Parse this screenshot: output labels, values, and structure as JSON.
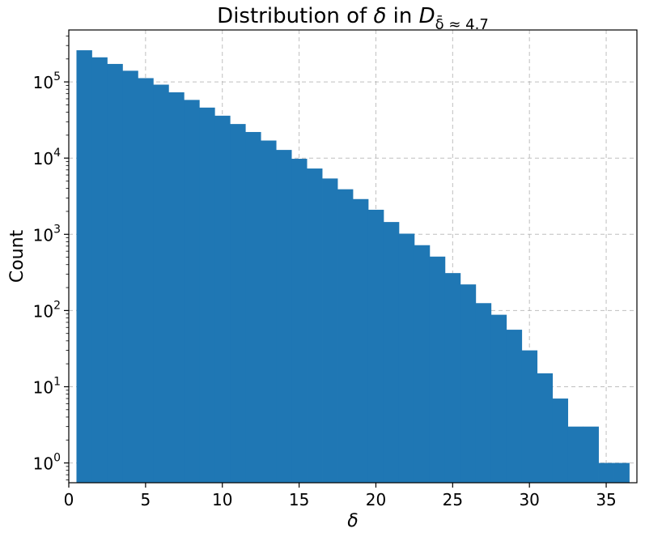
{
  "chart_data": {
    "type": "bar",
    "title": {
      "prefix": "Distribution of ",
      "symbol": "δ",
      "middle": " in ",
      "dataset": "D",
      "subscript": "δ̄ ≈ 4.7"
    },
    "xlabel": "δ",
    "ylabel": "Count",
    "xlim": [
      0,
      37
    ],
    "ylim": [
      0.55,
      480000
    ],
    "yscale": "log",
    "grid": true,
    "color": "#1f77b4",
    "bin_width": 1,
    "bins": [
      {
        "x0": 0.5,
        "count": 260000
      },
      {
        "x0": 1.5,
        "count": 210000
      },
      {
        "x0": 2.5,
        "count": 172000
      },
      {
        "x0": 3.5,
        "count": 140000
      },
      {
        "x0": 4.5,
        "count": 112000
      },
      {
        "x0": 5.5,
        "count": 92000
      },
      {
        "x0": 6.5,
        "count": 73000
      },
      {
        "x0": 7.5,
        "count": 58000
      },
      {
        "x0": 8.5,
        "count": 46000
      },
      {
        "x0": 9.5,
        "count": 36000
      },
      {
        "x0": 10.5,
        "count": 28000
      },
      {
        "x0": 11.5,
        "count": 22000
      },
      {
        "x0": 12.5,
        "count": 17000
      },
      {
        "x0": 13.5,
        "count": 12800
      },
      {
        "x0": 14.5,
        "count": 9800
      },
      {
        "x0": 15.5,
        "count": 7300
      },
      {
        "x0": 16.5,
        "count": 5400
      },
      {
        "x0": 17.5,
        "count": 3900
      },
      {
        "x0": 18.5,
        "count": 2900
      },
      {
        "x0": 19.5,
        "count": 2100
      },
      {
        "x0": 20.5,
        "count": 1450
      },
      {
        "x0": 21.5,
        "count": 1020
      },
      {
        "x0": 22.5,
        "count": 720
      },
      {
        "x0": 23.5,
        "count": 510
      },
      {
        "x0": 24.5,
        "count": 310
      },
      {
        "x0": 25.5,
        "count": 220
      },
      {
        "x0": 26.5,
        "count": 125
      },
      {
        "x0": 27.5,
        "count": 88
      },
      {
        "x0": 28.5,
        "count": 56
      },
      {
        "x0": 29.5,
        "count": 30
      },
      {
        "x0": 30.5,
        "count": 15
      },
      {
        "x0": 31.5,
        "count": 7
      },
      {
        "x0": 32.5,
        "count": 3
      },
      {
        "x0": 33.5,
        "count": 3
      },
      {
        "x0": 34.5,
        "count": 1
      },
      {
        "x0": 35.5,
        "count": 1
      }
    ],
    "xticks": [
      "0",
      "5",
      "10",
      "15",
      "20",
      "25",
      "30",
      "35"
    ],
    "yticks": [
      {
        "value": 1,
        "base": "10",
        "exp": "0"
      },
      {
        "value": 10,
        "base": "10",
        "exp": "1"
      },
      {
        "value": 100,
        "base": "10",
        "exp": "2"
      },
      {
        "value": 1000,
        "base": "10",
        "exp": "3"
      },
      {
        "value": 10000,
        "base": "10",
        "exp": "4"
      },
      {
        "value": 100000,
        "base": "10",
        "exp": "5"
      }
    ]
  }
}
